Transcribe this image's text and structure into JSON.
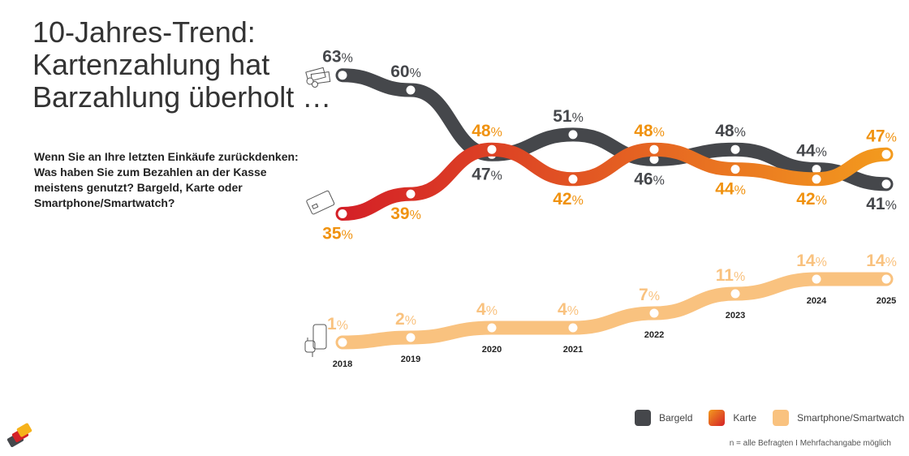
{
  "title_lines": [
    "10-Jahres-Trend:",
    "Kartenzahlung hat",
    "Barzahlung überholt …"
  ],
  "question": "Wenn Sie an Ihre letzten Einkäufe zurückdenken: Was haben Sie zum Bezahlen an der Kasse meistens genutzt? Bargeld, Karte oder Smartphone/Smartwatch?",
  "note": "n = alle Befragten I Mehrfachangabe möglich",
  "chart_data": {
    "type": "line",
    "title": "10-Jahres-Trend: Kartenzahlung hat Barzahlung überholt …",
    "x": [
      "2018",
      "2019",
      "2020",
      "2021",
      "2022",
      "2023",
      "2024",
      "2025"
    ],
    "unit": "%",
    "series": [
      {
        "name": "Bargeld",
        "color": "#45474b",
        "values": [
          63,
          60,
          47,
          51,
          46,
          48,
          44,
          41
        ]
      },
      {
        "name": "Karte",
        "color": "#e8521f",
        "gradient": [
          "#d42027",
          "#f39a1e"
        ],
        "values": [
          35,
          39,
          48,
          42,
          48,
          44,
          42,
          47
        ]
      },
      {
        "name": "Smartphone/Smartwatch",
        "color": "#f9c27f",
        "values": [
          1,
          2,
          4,
          4,
          7,
          11,
          14,
          14
        ]
      }
    ],
    "label_colors": {
      "Bargeld": "#45474b",
      "Karte": "#f0920f",
      "Smartphone/Smartwatch": "#f9c27f"
    },
    "legend": "bottom-right"
  }
}
